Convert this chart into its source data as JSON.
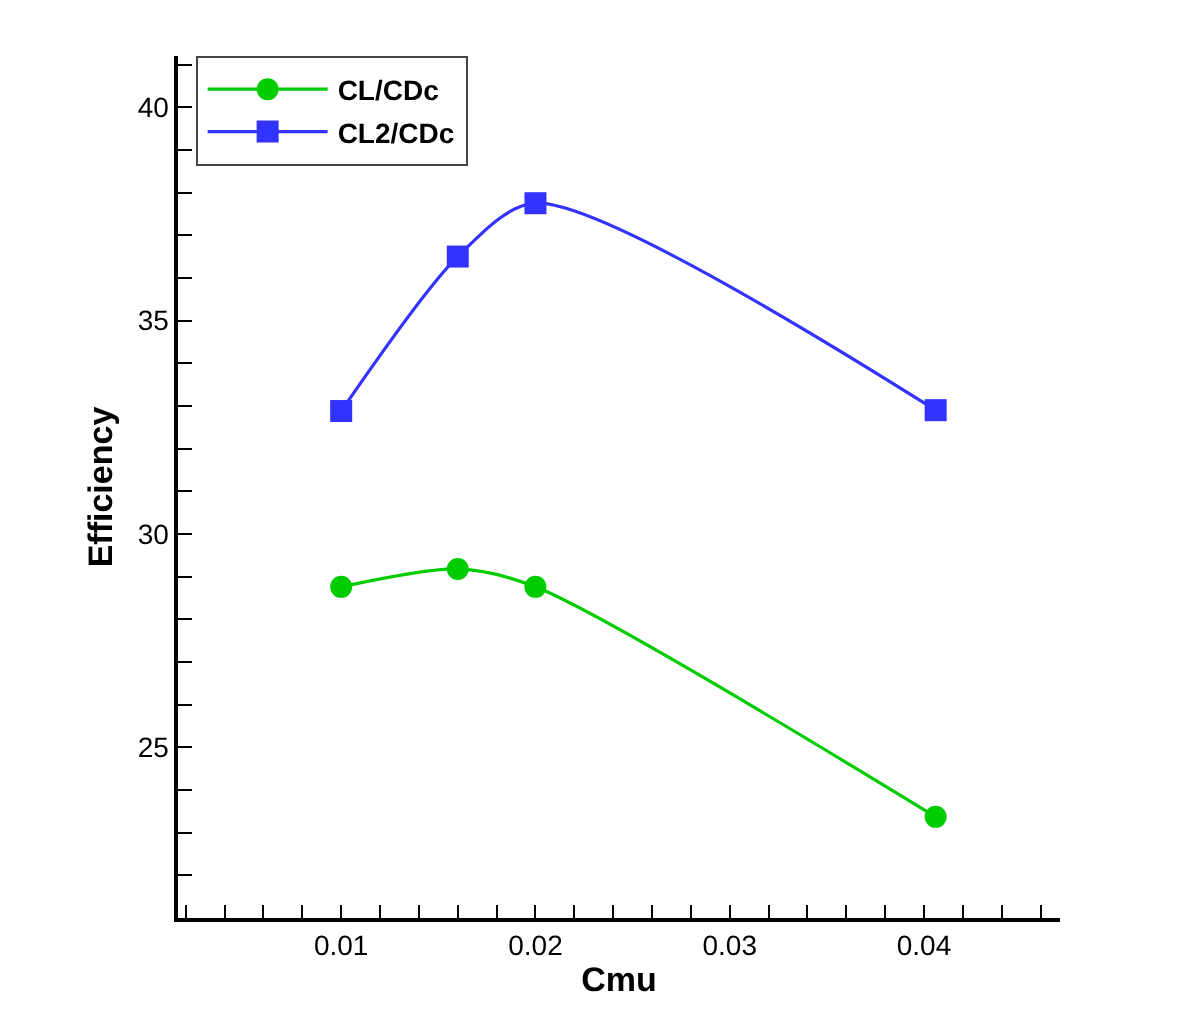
{
  "chart_data": {
    "type": "line",
    "xlabel": "Cmu",
    "ylabel": "Efficiency",
    "x": [
      0.01,
      0.016,
      0.02,
      0.0406
    ],
    "series": [
      {
        "name": "CL/CDc",
        "color": "#00cc00",
        "marker": "circle",
        "values": [
          28.76,
          29.18,
          28.76,
          23.37
        ]
      },
      {
        "name": "CL2/CDc",
        "color": "#3333ff",
        "marker": "square",
        "values": [
          32.88,
          36.5,
          37.75,
          32.9
        ]
      }
    ],
    "xlim": [
      0.0016,
      0.047
    ],
    "ylim": [
      21,
      41.2
    ],
    "xticks": [
      {
        "value": 0.002,
        "label": null
      },
      {
        "value": 0.004,
        "label": null
      },
      {
        "value": 0.006,
        "label": null
      },
      {
        "value": 0.008,
        "label": null
      },
      {
        "value": 0.01,
        "label": "0.01"
      },
      {
        "value": 0.012,
        "label": null
      },
      {
        "value": 0.014,
        "label": null
      },
      {
        "value": 0.016,
        "label": null
      },
      {
        "value": 0.018,
        "label": null
      },
      {
        "value": 0.02,
        "label": "0.02"
      },
      {
        "value": 0.022,
        "label": null
      },
      {
        "value": 0.024,
        "label": null
      },
      {
        "value": 0.026,
        "label": null
      },
      {
        "value": 0.028,
        "label": null
      },
      {
        "value": 0.03,
        "label": "0.03"
      },
      {
        "value": 0.032,
        "label": null
      },
      {
        "value": 0.034,
        "label": null
      },
      {
        "value": 0.036,
        "label": null
      },
      {
        "value": 0.038,
        "label": null
      },
      {
        "value": 0.04,
        "label": "0.04"
      },
      {
        "value": 0.042,
        "label": null
      },
      {
        "value": 0.044,
        "label": null
      },
      {
        "value": 0.046,
        "label": null
      }
    ],
    "yticks": [
      {
        "value": 22,
        "label": null
      },
      {
        "value": 23,
        "label": null
      },
      {
        "value": 24,
        "label": null
      },
      25,
      {
        "value": 26,
        "label": null
      },
      {
        "value": 27,
        "label": null
      },
      {
        "value": 28,
        "label": null
      },
      {
        "value": 29,
        "label": null
      },
      30,
      {
        "value": 31,
        "label": null
      },
      {
        "value": 32,
        "label": null
      },
      {
        "value": 33,
        "label": null
      },
      {
        "value": 34,
        "label": null
      },
      35,
      {
        "value": 36,
        "label": null
      },
      {
        "value": 37,
        "label": null
      },
      {
        "value": 38,
        "label": null
      },
      {
        "value": 39,
        "label": null
      },
      40,
      {
        "value": 41,
        "label": null
      }
    ],
    "legend": "top left",
    "line_style": "solid"
  }
}
